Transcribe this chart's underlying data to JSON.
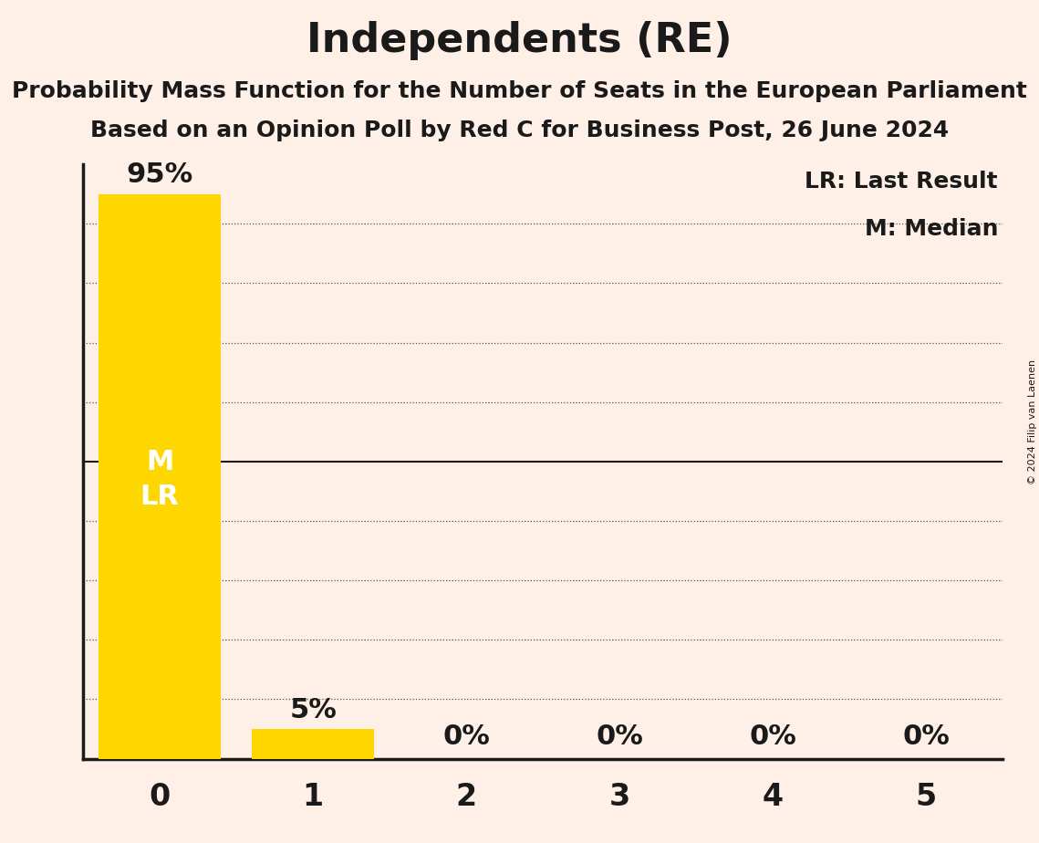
{
  "title": "Independents (RE)",
  "subtitle1": "Probability Mass Function for the Number of Seats in the European Parliament",
  "subtitle2": "Based on an Opinion Poll by Red C for Business Post, 26 June 2024",
  "copyright": "© 2024 Filip van Laenen",
  "categories": [
    0,
    1,
    2,
    3,
    4,
    5
  ],
  "values": [
    0.95,
    0.05,
    0.0,
    0.0,
    0.0,
    0.0
  ],
  "bar_color": "#FFD700",
  "background_color": "#FEF0E7",
  "median": 0,
  "last_result": 0,
  "legend_lr": "LR: Last Result",
  "legend_m": "M: Median",
  "title_fontsize": 32,
  "subtitle_fontsize": 18,
  "bar_label_fontsize": 22,
  "axis_label_fontsize": 24,
  "tick_fontsize": 24,
  "legend_fontsize": 18,
  "bar_label_color_inside": "#FFFFFF",
  "bar_label_color_outside": "#1a1a1a",
  "text_color": "#1a1a1a",
  "ml_label_fontsize": 22
}
